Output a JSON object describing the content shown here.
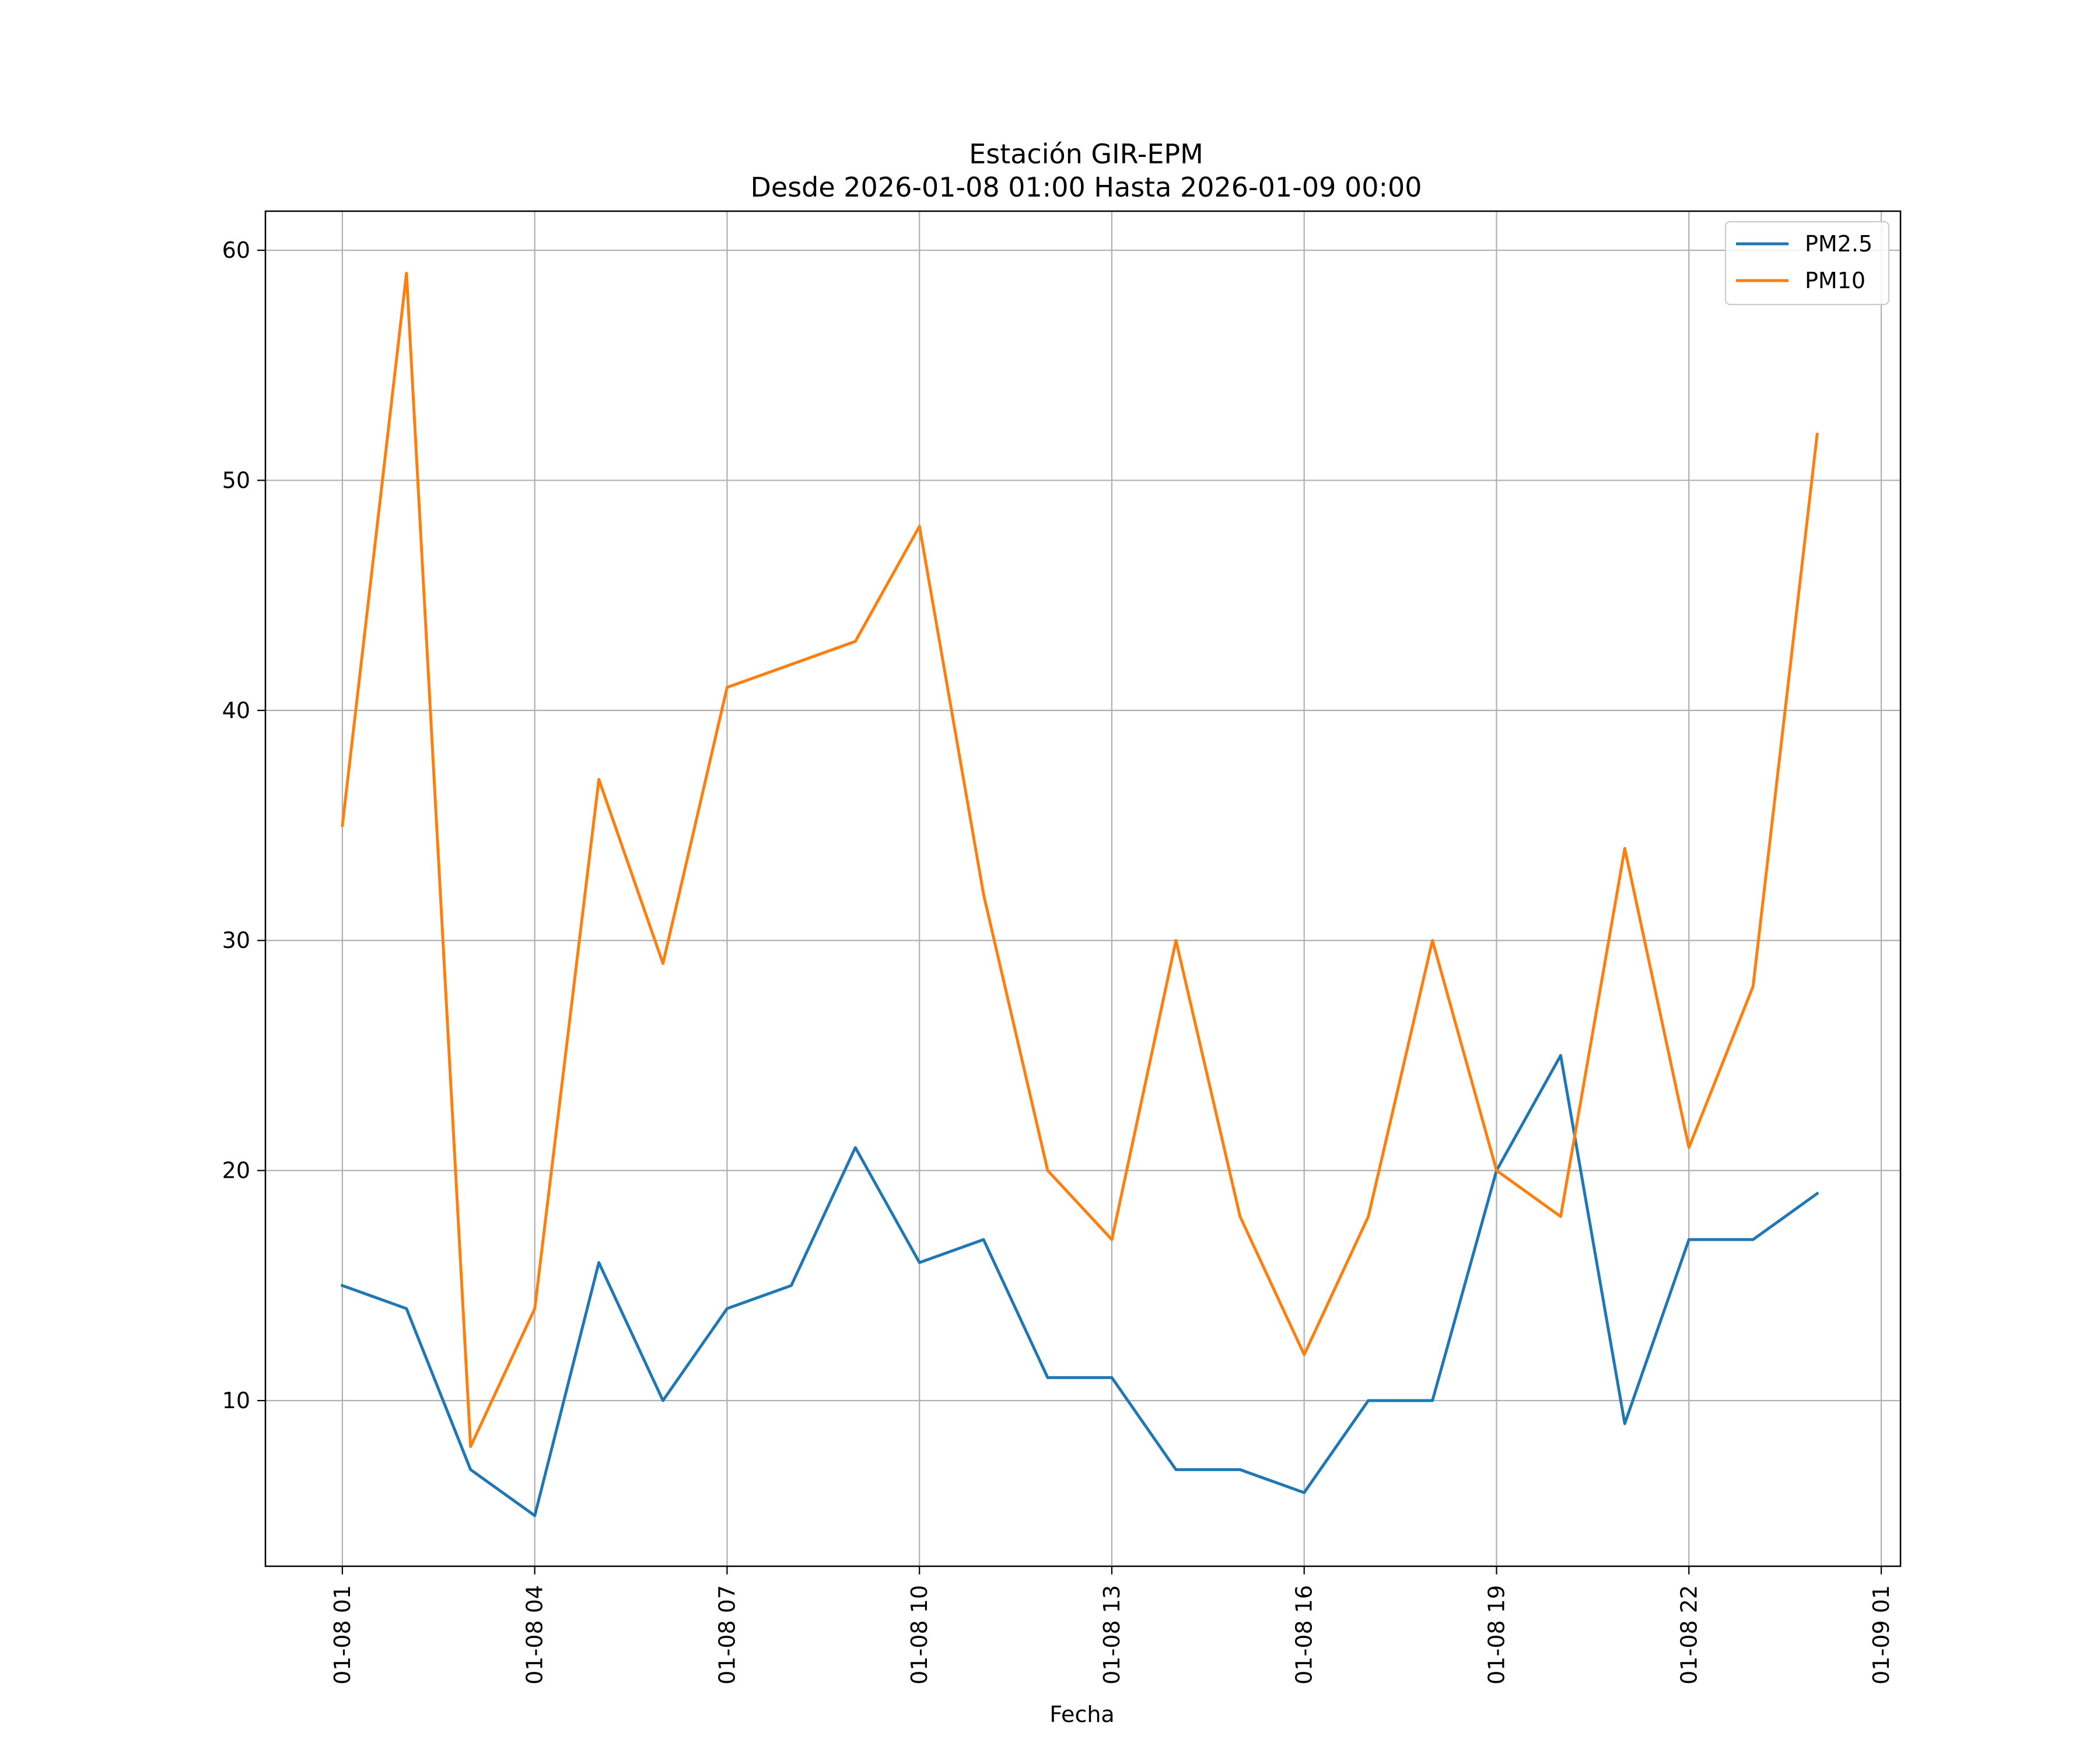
{
  "chart_data": {
    "type": "line",
    "title_line1": "Estación GIR-EPM",
    "title_line2": "Desde 2026-01-08 01:00 Hasta 2026-01-09 00:00",
    "xlabel": "Fecha",
    "ylabel": "",
    "x": [
      1,
      2,
      3,
      4,
      5,
      6,
      7,
      8,
      9,
      10,
      11,
      12,
      13,
      14,
      15,
      16,
      17,
      18,
      19,
      20,
      21,
      22,
      23,
      24
    ],
    "xlim": [
      -0.2,
      25.3
    ],
    "ylim": [
      2.8,
      61.7
    ],
    "xticks": [
      {
        "value": 1,
        "label": "01-08 01"
      },
      {
        "value": 4,
        "label": "01-08 04"
      },
      {
        "value": 7,
        "label": "01-08 07"
      },
      {
        "value": 10,
        "label": "01-08 10"
      },
      {
        "value": 13,
        "label": "01-08 13"
      },
      {
        "value": 16,
        "label": "01-08 16"
      },
      {
        "value": 19,
        "label": "01-08 19"
      },
      {
        "value": 22,
        "label": "01-08 22"
      },
      {
        "value": 25,
        "label": "01-09 01"
      }
    ],
    "yticks": [
      {
        "value": 10,
        "label": "10"
      },
      {
        "value": 20,
        "label": "20"
      },
      {
        "value": 30,
        "label": "30"
      },
      {
        "value": 40,
        "label": "40"
      },
      {
        "value": 50,
        "label": "50"
      },
      {
        "value": 60,
        "label": "60"
      }
    ],
    "grid": true,
    "legend_position": "top-right",
    "series": [
      {
        "name": "PM2.5",
        "color": "#1f77b4",
        "values": [
          15,
          14,
          7,
          5,
          16,
          10,
          14,
          15,
          21,
          16,
          17,
          11,
          11,
          7,
          7,
          6,
          10,
          10,
          20,
          25,
          9,
          17,
          17,
          19
        ]
      },
      {
        "name": "PM10",
        "color": "#ff7f0e",
        "values": [
          35,
          59,
          8,
          14,
          37,
          29,
          41,
          42,
          43,
          48,
          32,
          20,
          17,
          30,
          18,
          12,
          18,
          30,
          20,
          18,
          34,
          21,
          28,
          52
        ]
      }
    ]
  }
}
